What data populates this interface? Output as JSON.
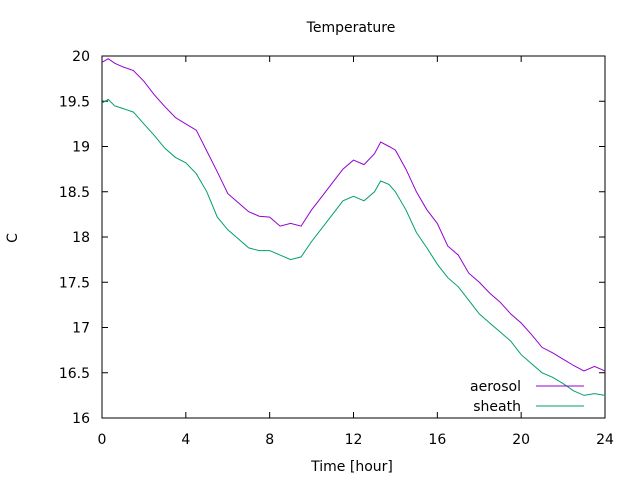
{
  "chart_data": {
    "type": "line",
    "title": "Temperature",
    "xlabel": "Time [hour]",
    "ylabel": "C",
    "xlim": [
      0,
      24
    ],
    "ylim": [
      16,
      20
    ],
    "xticks": [
      0,
      4,
      8,
      12,
      16,
      20,
      24
    ],
    "yticks": [
      16,
      16.5,
      17,
      17.5,
      18,
      18.5,
      19,
      19.5,
      20
    ],
    "ytick_labels": [
      "16",
      "16.5",
      "17",
      "17.5",
      "18",
      "18.5",
      "19",
      "19.5",
      "20"
    ],
    "grid": false,
    "legend_position": "bottom-right",
    "series": [
      {
        "name": "aerosol",
        "color": "#9400d3",
        "points": [
          [
            0,
            19.93
          ],
          [
            0.3,
            19.97
          ],
          [
            0.6,
            19.92
          ],
          [
            1,
            19.88
          ],
          [
            1.5,
            19.84
          ],
          [
            2,
            19.72
          ],
          [
            2.5,
            19.57
          ],
          [
            3,
            19.44
          ],
          [
            3.5,
            19.32
          ],
          [
            4,
            19.25
          ],
          [
            4.5,
            19.18
          ],
          [
            5,
            18.95
          ],
          [
            5.5,
            18.72
          ],
          [
            6,
            18.48
          ],
          [
            6.5,
            18.38
          ],
          [
            7,
            18.28
          ],
          [
            7.5,
            18.23
          ],
          [
            8,
            18.22
          ],
          [
            8.5,
            18.12
          ],
          [
            9,
            18.15
          ],
          [
            9.5,
            18.12
          ],
          [
            10,
            18.3
          ],
          [
            10.5,
            18.45
          ],
          [
            11,
            18.6
          ],
          [
            11.5,
            18.75
          ],
          [
            12,
            18.85
          ],
          [
            12.5,
            18.8
          ],
          [
            13,
            18.92
          ],
          [
            13.3,
            19.05
          ],
          [
            13.7,
            19.0
          ],
          [
            14,
            18.96
          ],
          [
            14.5,
            18.75
          ],
          [
            15,
            18.5
          ],
          [
            15.5,
            18.3
          ],
          [
            16,
            18.15
          ],
          [
            16.5,
            17.9
          ],
          [
            17,
            17.8
          ],
          [
            17.5,
            17.6
          ],
          [
            18,
            17.5
          ],
          [
            18.5,
            17.38
          ],
          [
            19,
            17.28
          ],
          [
            19.5,
            17.15
          ],
          [
            20,
            17.05
          ],
          [
            20.5,
            16.92
          ],
          [
            21,
            16.78
          ],
          [
            21.5,
            16.72
          ],
          [
            22,
            16.65
          ],
          [
            22.5,
            16.58
          ],
          [
            23,
            16.52
          ],
          [
            23.5,
            16.57
          ],
          [
            24,
            16.52
          ]
        ]
      },
      {
        "name": "sheath",
        "color": "#009e73",
        "points": [
          [
            0,
            19.48
          ],
          [
            0.3,
            19.52
          ],
          [
            0.6,
            19.45
          ],
          [
            1,
            19.42
          ],
          [
            1.5,
            19.38
          ],
          [
            2,
            19.25
          ],
          [
            2.5,
            19.12
          ],
          [
            3,
            18.98
          ],
          [
            3.5,
            18.88
          ],
          [
            4,
            18.82
          ],
          [
            4.5,
            18.7
          ],
          [
            5,
            18.5
          ],
          [
            5.5,
            18.22
          ],
          [
            6,
            18.08
          ],
          [
            6.5,
            17.98
          ],
          [
            7,
            17.88
          ],
          [
            7.5,
            17.85
          ],
          [
            8,
            17.85
          ],
          [
            8.5,
            17.8
          ],
          [
            9,
            17.75
          ],
          [
            9.5,
            17.78
          ],
          [
            10,
            17.95
          ],
          [
            10.5,
            18.1
          ],
          [
            11,
            18.25
          ],
          [
            11.5,
            18.4
          ],
          [
            12,
            18.45
          ],
          [
            12.5,
            18.4
          ],
          [
            13,
            18.5
          ],
          [
            13.3,
            18.62
          ],
          [
            13.7,
            18.58
          ],
          [
            14,
            18.5
          ],
          [
            14.5,
            18.3
          ],
          [
            15,
            18.05
          ],
          [
            15.5,
            17.88
          ],
          [
            16,
            17.7
          ],
          [
            16.5,
            17.55
          ],
          [
            17,
            17.45
          ],
          [
            17.5,
            17.3
          ],
          [
            18,
            17.15
          ],
          [
            18.5,
            17.05
          ],
          [
            19,
            16.95
          ],
          [
            19.5,
            16.85
          ],
          [
            20,
            16.7
          ],
          [
            20.5,
            16.6
          ],
          [
            21,
            16.5
          ],
          [
            21.5,
            16.45
          ],
          [
            22,
            16.38
          ],
          [
            22.5,
            16.3
          ],
          [
            23,
            16.25
          ],
          [
            23.5,
            16.27
          ],
          [
            24,
            16.25
          ]
        ]
      }
    ]
  }
}
